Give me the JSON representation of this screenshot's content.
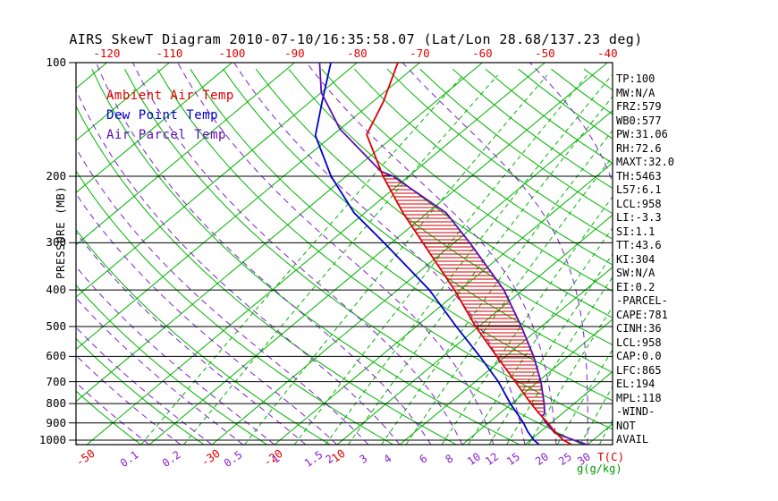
{
  "title": "AIRS SkewT Diagram 2010-07-10/16:35:58.07 (Lat/Lon 28.68/137.23 deg)",
  "legend": {
    "ambient": "Ambient Air Temp",
    "dew_point": "Dew Point Temp",
    "air_parcel": "Air Parcel Temp"
  },
  "axes": {
    "pressure_label": "PRESSURE (MB)",
    "pressure_ticks": [
      100,
      200,
      300,
      400,
      500,
      600,
      700,
      800,
      900,
      1000
    ],
    "top_temp_ticks": [
      -120,
      -110,
      -100,
      -90,
      -80,
      -70,
      -60,
      -50,
      -40
    ],
    "bottom_temp_ticks": [
      -50,
      -30,
      -20,
      -10
    ],
    "mixing_ticks": [
      0.1,
      0.2,
      0.5,
      1,
      1.5,
      2,
      3,
      4,
      6,
      8,
      10,
      12,
      15,
      20,
      25,
      30
    ],
    "temp_unit": "T(C)",
    "mixing_unit": "g(g/kg)"
  },
  "stats": [
    "TP:100",
    "MW:N/A",
    "FRZ:579",
    "WB0:577",
    "PW:31.06",
    "RH:72.6",
    "MAXT:32.0",
    "TH:5463",
    "L57:6.1",
    "LCL:958",
    "LI:-3.3",
    "SI:1.1",
    "TT:43.6",
    "KI:304",
    "SW:N/A",
    "EI:0.2",
    "-PARCEL-",
    "CAPE:781",
    "CINH:36",
    "LCL:958",
    "CAP:0.0",
    "LFC:865",
    "EL:194",
    "MPL:118",
    "-WIND-",
    "NOT",
    "AVAIL"
  ],
  "colors": {
    "green_line": "#00b400",
    "red": "#dd0000",
    "blue": "#0000cc",
    "purple": "#5b0bb5",
    "moist_purple": "#7a22cc",
    "mixing_label": "#8822cc",
    "hatch_red": "#cc0000",
    "unit_green": "#009900",
    "black": "#000000"
  },
  "chart_data": {
    "type": "line",
    "title": "AIRS SkewT Diagram 2010-07-10/16:35:58.07 (Lat/Lon 28.68/137.23 deg)",
    "x_axis": {
      "label": "T(C)",
      "skewed": true,
      "top_ticks": [
        -120,
        -110,
        -100,
        -90,
        -80,
        -70,
        -60,
        -50,
        -40
      ],
      "bottom_ticks": [
        -50,
        -30,
        -20,
        -10
      ]
    },
    "y_axis": {
      "label": "PRESSURE (MB)",
      "scale": "log",
      "range_mb": [
        100,
        1028
      ],
      "ticks": [
        100,
        200,
        300,
        400,
        500,
        600,
        700,
        800,
        900,
        1000
      ]
    },
    "isotherms_C": {
      "min": -130,
      "max": 40,
      "step": 10
    },
    "dry_adiabats_theta_K": {
      "min": 220,
      "max": 450,
      "step": 10
    },
    "moist_adiabats_surface_C": {
      "min": -40,
      "max": 40,
      "step": 5
    },
    "mixing_ratio_lines_g_kg": [
      0.1,
      0.2,
      0.5,
      1,
      1.5,
      2,
      3,
      4,
      6,
      8,
      10,
      12,
      15,
      20,
      25,
      30
    ],
    "cape_hatch": {
      "lfc_mb": 865,
      "el_mb": 194
    },
    "series": [
      {
        "key": "dew_point",
        "name": "Dew Point Temp",
        "color": "#0000cc",
        "points": [
          [
            1028,
            22.3
          ],
          [
            1000,
            20.6
          ],
          [
            950,
            18.0
          ],
          [
            900,
            15.6
          ],
          [
            850,
            12.8
          ],
          [
            800,
            9.8
          ],
          [
            700,
            3.7
          ],
          [
            600,
            -4.1
          ],
          [
            500,
            -13.6
          ],
          [
            400,
            -24.9
          ],
          [
            300,
            -41.2
          ],
          [
            250,
            -51.7
          ],
          [
            200,
            -62.4
          ],
          [
            156,
            -72.7
          ],
          [
            126,
            -78.3
          ],
          [
            100,
            -84.2
          ]
        ]
      },
      {
        "key": "parcel",
        "name": "Air Parcel Temp",
        "color": "#5b0bb5",
        "points": [
          [
            1028,
            30.0
          ],
          [
            1000,
            27.0
          ],
          [
            958,
            22.6
          ],
          [
            900,
            19.2
          ],
          [
            865,
            17.3
          ],
          [
            850,
            17.2
          ],
          [
            800,
            15.2
          ],
          [
            700,
            10.5
          ],
          [
            600,
            4.5
          ],
          [
            500,
            -3.2
          ],
          [
            400,
            -13.0
          ],
          [
            300,
            -27.5
          ],
          [
            250,
            -37.0
          ],
          [
            200,
            -52.5
          ],
          [
            194,
            -55.4
          ],
          [
            150,
            -70.0
          ],
          [
            120,
            -80.0
          ],
          [
            100,
            -86.0
          ]
        ]
      },
      {
        "key": "ambient",
        "name": "Ambient Air Temp",
        "color": "#dd0000",
        "points": [
          [
            1028,
            27.5
          ],
          [
            1000,
            25.3
          ],
          [
            950,
            22.3
          ],
          [
            900,
            19.5
          ],
          [
            850,
            16.3
          ],
          [
            800,
            13.1
          ],
          [
            700,
            6.4
          ],
          [
            600,
            -1.4
          ],
          [
            500,
            -10.5
          ],
          [
            400,
            -20.9
          ],
          [
            300,
            -35.0
          ],
          [
            250,
            -43.9
          ],
          [
            200,
            -54.1
          ],
          [
            155,
            -64.7
          ],
          [
            127,
            -68.3
          ],
          [
            100,
            -73.5
          ]
        ]
      }
    ]
  }
}
